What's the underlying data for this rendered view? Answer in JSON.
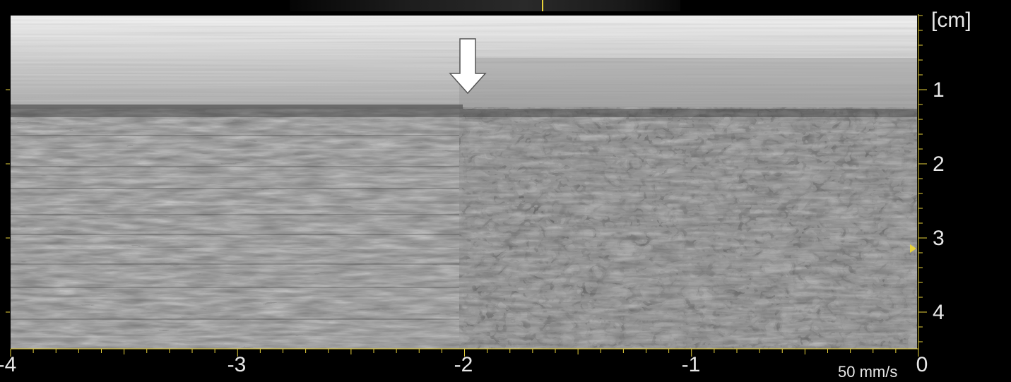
{
  "display": {
    "depth_unit": "[cm]",
    "sweep_speed": "50 mm/s",
    "depth_ticks": [
      "1",
      "2",
      "3",
      "4"
    ],
    "time_ticks": [
      "-4",
      "-3",
      "-2",
      "-1",
      "0"
    ],
    "colors": {
      "background": "#000000",
      "tick_marks": "#e8d23a",
      "labels": "#e8e8e8",
      "arrow": "#ffffff"
    }
  },
  "annotations": {
    "arrow_icon": "down-arrow-icon",
    "focus_marker_icon": "triangle-right-icon"
  }
}
